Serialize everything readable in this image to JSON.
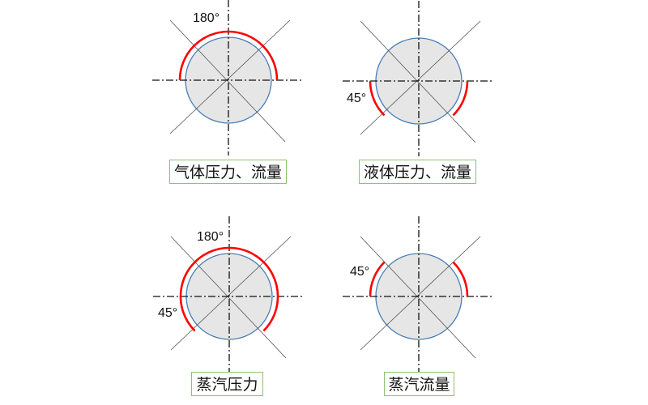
{
  "colors": {
    "circle_fill": "#e6e6e6",
    "circle_stroke": "#4a7eb5",
    "arc": "#ff0000",
    "label_border": "#8dc26f"
  },
  "panels": [
    {
      "label": "气体压力、流量",
      "degree_labels": [
        "180°"
      ],
      "arcs": [
        [
          0,
          180
        ]
      ]
    },
    {
      "label": "液体压力、流量",
      "degree_labels": [
        "45°"
      ],
      "arcs": [
        [
          180,
          225
        ],
        [
          315,
          360
        ]
      ]
    },
    {
      "label": "蒸汽压力",
      "degree_labels": [
        "180°",
        "45°"
      ],
      "arcs": [
        [
          0,
          225
        ],
        [
          315,
          360
        ]
      ]
    },
    {
      "label": "蒸汽流量",
      "degree_labels": [
        "45°"
      ],
      "arcs": [
        [
          135,
          180
        ],
        [
          0,
          45
        ]
      ]
    }
  ]
}
